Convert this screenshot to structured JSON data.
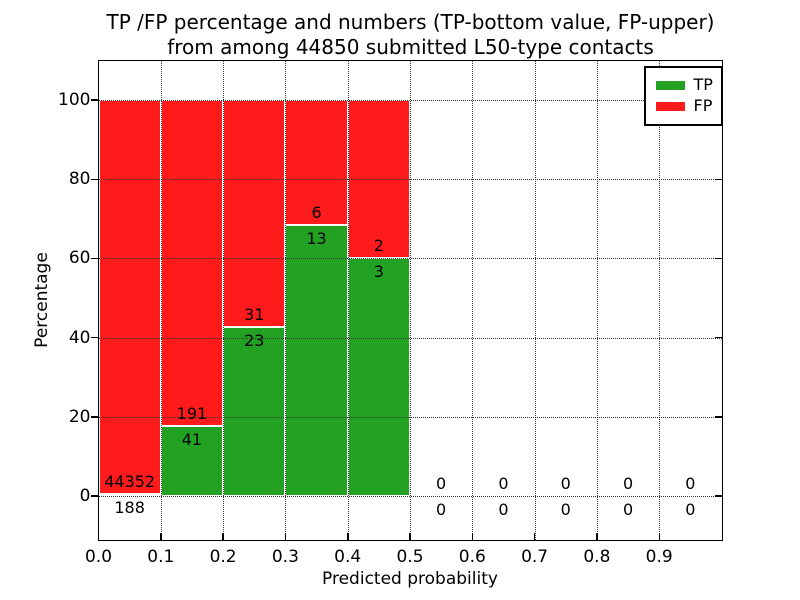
{
  "figure": {
    "title_line1": "TP /FP percentage and numbers (TP-bottom value, FP-upper)",
    "title_line2": "from among 44850 submitted L50-type contacts"
  },
  "legend": {
    "items": [
      {
        "label": "TP",
        "color": "#23a123"
      },
      {
        "label": "FP",
        "color": "#ff1b1b"
      }
    ]
  },
  "chart_data": {
    "type": "bar",
    "stacked": true,
    "title": "TP /FP percentage and numbers (TP-bottom value, FP-upper) from among 44850 submitted L50-type contacts",
    "xlabel": "Predicted probability",
    "ylabel": "Percentage",
    "xlim": [
      0.0,
      1.0
    ],
    "ylim": [
      -11,
      110
    ],
    "grid": true,
    "legend_position": "upper-right",
    "total_contacts": 44850,
    "colors": {
      "tp": "#23a123",
      "fp": "#ff1b1b"
    },
    "yticks": [
      0,
      20,
      40,
      60,
      80,
      100
    ],
    "xticks": [
      {
        "value": 0.0,
        "label": "0.0"
      },
      {
        "value": 0.1,
        "label": "0.1"
      },
      {
        "value": 0.2,
        "label": "0.2"
      },
      {
        "value": 0.3,
        "label": "0.3"
      },
      {
        "value": 0.4,
        "label": "0.4"
      },
      {
        "value": 0.5,
        "label": "0.5"
      },
      {
        "value": 0.6,
        "label": "0.6"
      },
      {
        "value": 0.7,
        "label": "0.7"
      },
      {
        "value": 0.8,
        "label": "0.8"
      },
      {
        "value": 0.9,
        "label": "0.9"
      }
    ],
    "bins": [
      {
        "x0": 0.0,
        "x1": 0.1,
        "tp": 188,
        "fp": 44352,
        "tp_pct": 0.42,
        "fp_pct": 99.58
      },
      {
        "x0": 0.1,
        "x1": 0.2,
        "tp": 41,
        "fp": 191,
        "tp_pct": 17.67,
        "fp_pct": 82.33
      },
      {
        "x0": 0.2,
        "x1": 0.3,
        "tp": 23,
        "fp": 31,
        "tp_pct": 42.59,
        "fp_pct": 57.41
      },
      {
        "x0": 0.3,
        "x1": 0.4,
        "tp": 13,
        "fp": 6,
        "tp_pct": 68.42,
        "fp_pct": 31.58
      },
      {
        "x0": 0.4,
        "x1": 0.5,
        "tp": 3,
        "fp": 2,
        "tp_pct": 60.0,
        "fp_pct": 40.0
      },
      {
        "x0": 0.5,
        "x1": 0.6,
        "tp": 0,
        "fp": 0,
        "tp_pct": 0,
        "fp_pct": 0
      },
      {
        "x0": 0.6,
        "x1": 0.7,
        "tp": 0,
        "fp": 0,
        "tp_pct": 0,
        "fp_pct": 0
      },
      {
        "x0": 0.7,
        "x1": 0.8,
        "tp": 0,
        "fp": 0,
        "tp_pct": 0,
        "fp_pct": 0
      },
      {
        "x0": 0.8,
        "x1": 0.9,
        "tp": 0,
        "fp": 0,
        "tp_pct": 0,
        "fp_pct": 0
      },
      {
        "x0": 0.9,
        "x1": 1.0,
        "tp": 0,
        "fp": 0,
        "tp_pct": 0,
        "fp_pct": 0
      }
    ]
  }
}
